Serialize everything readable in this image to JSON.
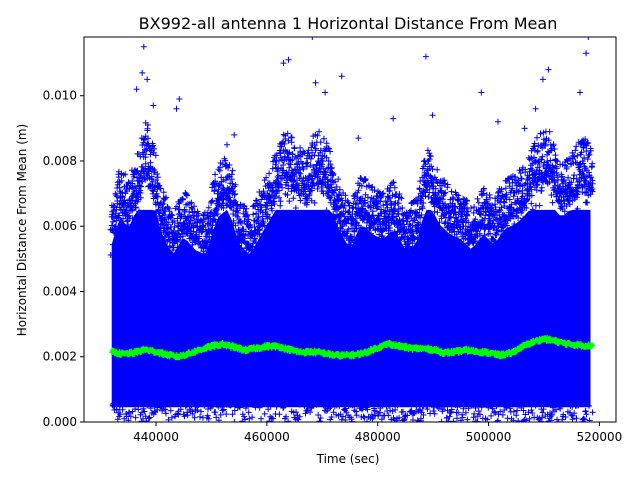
{
  "chart_data": {
    "type": "scatter",
    "title": "BX992-all antenna 1 Horizontal Distance From Mean",
    "xlabel": "Time (sec)",
    "ylabel": "Horizontal Distance From Mean (m)",
    "xlim": [
      427000,
      523000
    ],
    "ylim": [
      0.0,
      0.0118
    ],
    "x_ticks": [
      440000,
      460000,
      480000,
      500000,
      520000
    ],
    "x_tick_labels": [
      "440000",
      "460000",
      "480000",
      "500000",
      "520000"
    ],
    "y_ticks": [
      0.0,
      0.002,
      0.004,
      0.006,
      0.008,
      0.01
    ],
    "y_tick_labels": [
      "0.000",
      "0.002",
      "0.004",
      "0.006",
      "0.008",
      "0.010"
    ],
    "grid": false,
    "series": [
      {
        "marker": "+",
        "color": "#0000ff",
        "x_range": [
          432000,
          518800
        ],
        "typical_range": [
          0.0,
          0.0065
        ],
        "upper_envelope": [
          [
            432000,
            0.0068
          ],
          [
            433500,
            0.0079
          ],
          [
            435000,
            0.0074
          ],
          [
            437000,
            0.0084
          ],
          [
            438000,
            0.0092
          ],
          [
            439000,
            0.009
          ],
          [
            441000,
            0.0072
          ],
          [
            443000,
            0.0064
          ],
          [
            445000,
            0.0071
          ],
          [
            447000,
            0.0066
          ],
          [
            449000,
            0.0064
          ],
          [
            451000,
            0.0078
          ],
          [
            453000,
            0.0082
          ],
          [
            455000,
            0.0068
          ],
          [
            457000,
            0.0064
          ],
          [
            459000,
            0.0072
          ],
          [
            461000,
            0.0079
          ],
          [
            463000,
            0.009
          ],
          [
            465000,
            0.0086
          ],
          [
            467000,
            0.0082
          ],
          [
            469000,
            0.009
          ],
          [
            471000,
            0.0085
          ],
          [
            473000,
            0.0074
          ],
          [
            475000,
            0.0066
          ],
          [
            477000,
            0.0076
          ],
          [
            479000,
            0.0072
          ],
          [
            481000,
            0.007
          ],
          [
            483000,
            0.0074
          ],
          [
            485000,
            0.0066
          ],
          [
            487000,
            0.0068
          ],
          [
            489000,
            0.0086
          ],
          [
            491000,
            0.0076
          ],
          [
            493000,
            0.0072
          ],
          [
            495000,
            0.007
          ],
          [
            497000,
            0.0066
          ],
          [
            499000,
            0.0072
          ],
          [
            501000,
            0.0068
          ],
          [
            503000,
            0.0074
          ],
          [
            505000,
            0.0076
          ],
          [
            507000,
            0.008
          ],
          [
            509000,
            0.0088
          ],
          [
            511000,
            0.009
          ],
          [
            513000,
            0.0078
          ],
          [
            515000,
            0.0082
          ],
          [
            517000,
            0.0088
          ],
          [
            518800,
            0.0083
          ]
        ],
        "outliers": [
          [
            437800,
            0.0115
          ],
          [
            437500,
            0.0107
          ],
          [
            438400,
            0.0105
          ],
          [
            436500,
            0.0102
          ],
          [
            439500,
            0.0097
          ],
          [
            444200,
            0.0099
          ],
          [
            463000,
            0.011
          ],
          [
            463900,
            0.0111
          ],
          [
            468200,
            0.0118
          ],
          [
            468800,
            0.0104
          ],
          [
            473500,
            0.0106
          ],
          [
            488700,
            0.0112
          ],
          [
            498700,
            0.0101
          ],
          [
            508500,
            0.0096
          ],
          [
            509800,
            0.0105
          ],
          [
            510800,
            0.0108
          ],
          [
            516500,
            0.0101
          ],
          [
            517600,
            0.0113
          ],
          [
            518000,
            0.0118
          ],
          [
            443700,
            0.0096
          ],
          [
            470500,
            0.0101
          ],
          [
            482800,
            0.0093
          ],
          [
            489900,
            0.0094
          ],
          [
            506500,
            0.009
          ],
          [
            452800,
            0.0085
          ],
          [
            454100,
            0.0088
          ],
          [
            476500,
            0.0087
          ],
          [
            501700,
            0.0092
          ]
        ]
      },
      {
        "marker": "+",
        "color": "#00ff00",
        "x_range": [
          432000,
          518800
        ],
        "trend": [
          [
            432000,
            0.00215
          ],
          [
            434000,
            0.00208
          ],
          [
            436000,
            0.00212
          ],
          [
            438000,
            0.00222
          ],
          [
            440000,
            0.00215
          ],
          [
            442000,
            0.00206
          ],
          [
            444000,
            0.002
          ],
          [
            446000,
            0.0021
          ],
          [
            448000,
            0.00222
          ],
          [
            450000,
            0.00232
          ],
          [
            452000,
            0.00238
          ],
          [
            454000,
            0.0023
          ],
          [
            456000,
            0.0022
          ],
          [
            458000,
            0.00226
          ],
          [
            460000,
            0.00232
          ],
          [
            462000,
            0.00232
          ],
          [
            464000,
            0.00222
          ],
          [
            466000,
            0.00214
          ],
          [
            468000,
            0.00215
          ],
          [
            470000,
            0.00212
          ],
          [
            472000,
            0.00205
          ],
          [
            474000,
            0.00204
          ],
          [
            476000,
            0.00206
          ],
          [
            478000,
            0.00214
          ],
          [
            480000,
            0.00228
          ],
          [
            482000,
            0.0024
          ],
          [
            484000,
            0.00232
          ],
          [
            486000,
            0.00226
          ],
          [
            488000,
            0.00225
          ],
          [
            490000,
            0.00222
          ],
          [
            492000,
            0.00212
          ],
          [
            494000,
            0.00215
          ],
          [
            496000,
            0.0022
          ],
          [
            498000,
            0.00216
          ],
          [
            500000,
            0.00212
          ],
          [
            502000,
            0.00205
          ],
          [
            504000,
            0.0021
          ],
          [
            506000,
            0.0023
          ],
          [
            508000,
            0.00245
          ],
          [
            510000,
            0.00255
          ],
          [
            512000,
            0.00248
          ],
          [
            514000,
            0.0024
          ],
          [
            516000,
            0.00236
          ],
          [
            518000,
            0.00234
          ]
        ]
      }
    ]
  }
}
